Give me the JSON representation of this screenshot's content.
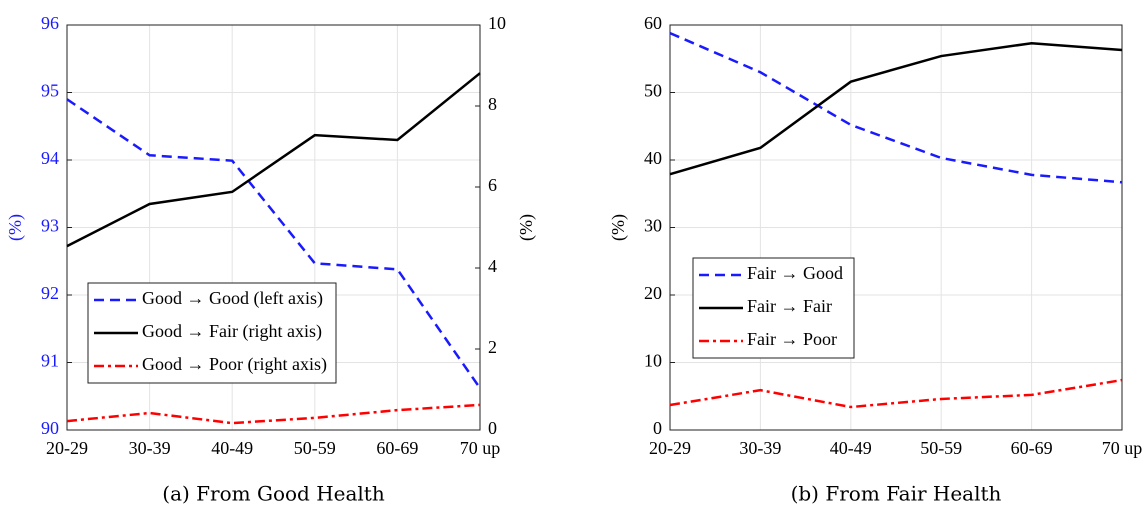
{
  "chart_data": [
    {
      "type": "line",
      "caption": "(a) From Good Health",
      "categories": [
        "20-29",
        "30-39",
        "40-49",
        "50-59",
        "60-69",
        "70 up"
      ],
      "ylabel": "(%)",
      "ylabel_color": "#1a1aff",
      "y2label": "(%)",
      "ylim": [
        90,
        96
      ],
      "yticks": [
        90,
        91,
        92,
        93,
        94,
        95,
        96
      ],
      "y2lim": [
        0,
        10
      ],
      "y2ticks": [
        0,
        2,
        4,
        6,
        8,
        10
      ],
      "grid": true,
      "legend": "lower left",
      "series": [
        {
          "name": "Good → Good (left axis)",
          "color": "#1a1aff",
          "linestyle": "dashed",
          "axis": "y",
          "values": [
            94.9,
            94.07,
            93.99,
            92.47,
            92.38,
            90.62
          ]
        },
        {
          "name": "Good → Fair (right axis)",
          "color": "#000000",
          "linestyle": "solid",
          "axis": "y2",
          "values": [
            4.54,
            5.58,
            5.88,
            7.28,
            7.16,
            8.81
          ]
        },
        {
          "name": "Good → Poor (right axis)",
          "color": "#ff0000",
          "linestyle": "dashdot",
          "axis": "y2",
          "values": [
            0.22,
            0.42,
            0.17,
            0.3,
            0.49,
            0.62
          ]
        }
      ]
    },
    {
      "type": "line",
      "caption": "(b) From Fair Health",
      "categories": [
        "20-29",
        "30-39",
        "40-49",
        "50-59",
        "60-69",
        "70 up"
      ],
      "ylabel": "(%)",
      "ylabel_color": "#000000",
      "ylim": [
        0,
        60
      ],
      "yticks": [
        0,
        10,
        20,
        30,
        40,
        50,
        60
      ],
      "grid": true,
      "legend": "center left",
      "series": [
        {
          "name": "Fair → Good",
          "color": "#1a1aff",
          "linestyle": "dashed",
          "axis": "y",
          "values": [
            58.8,
            53,
            45.2,
            40.3,
            37.8,
            36.7
          ]
        },
        {
          "name": "Fair → Fair",
          "color": "#000000",
          "linestyle": "solid",
          "axis": "y",
          "values": [
            37.9,
            41.8,
            51.6,
            55.4,
            57.3,
            56.3
          ]
        },
        {
          "name": "Fair → Poor",
          "color": "#ff0000",
          "linestyle": "dashdot",
          "axis": "y",
          "values": [
            3.7,
            5.9,
            3.4,
            4.6,
            5.2,
            7.4
          ]
        }
      ]
    }
  ]
}
